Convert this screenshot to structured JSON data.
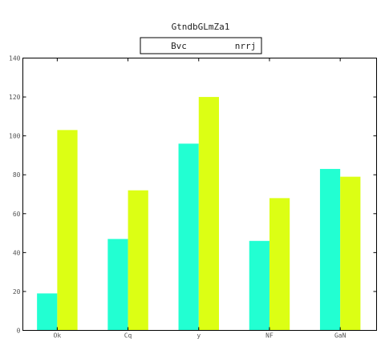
{
  "chart_data": {
    "type": "bar",
    "title": "GtndbGLmZa1",
    "xlabel": "",
    "ylabel": "",
    "categories": [
      "Ok",
      "Cq",
      "y",
      "NF",
      "GaN"
    ],
    "series": [
      {
        "name": "Bvc",
        "values": [
          19,
          47,
          96,
          46,
          83
        ],
        "color": "#22ffd2"
      },
      {
        "name": "nrrj",
        "values": [
          103,
          72,
          120,
          68,
          79
        ],
        "color": "#dcff14"
      }
    ],
    "ylim": [
      0,
      140
    ],
    "yticks": [
      0,
      20,
      40,
      60,
      80,
      100,
      120,
      140
    ],
    "grid": false,
    "legend_position": "top-center"
  }
}
